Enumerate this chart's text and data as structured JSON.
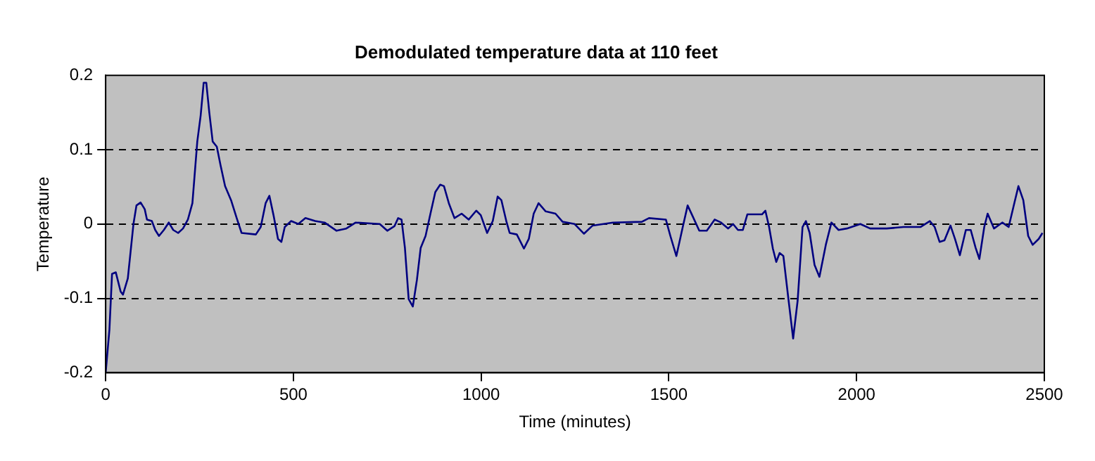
{
  "chart_data": {
    "type": "line",
    "title": "Demodulated temperature data at 110 feet",
    "xlabel": "Time (minutes)",
    "ylabel": "Temperature",
    "x": [
      0,
      10,
      17,
      27,
      40,
      46,
      59,
      74,
      82,
      93,
      104,
      110,
      123,
      132,
      142,
      155,
      168,
      180,
      193,
      206,
      219,
      231,
      244,
      253,
      261,
      268,
      276,
      285,
      296,
      306,
      318,
      334,
      349,
      362,
      400,
      413,
      426,
      436,
      447,
      459,
      468,
      477,
      494,
      513,
      532,
      558,
      583,
      615,
      641,
      666,
      730,
      750,
      769,
      779,
      788,
      797,
      807,
      818,
      829,
      839,
      852,
      865,
      878,
      891,
      901,
      914,
      929,
      948,
      967,
      987,
      999,
      1016,
      1031,
      1044,
      1054,
      1067,
      1076,
      1095,
      1114,
      1127,
      1140,
      1153,
      1172,
      1198,
      1217,
      1249,
      1274,
      1297,
      1351,
      1428,
      1447,
      1492,
      1504,
      1520,
      1537,
      1550,
      1562,
      1581,
      1601,
      1622,
      1639,
      1658,
      1671,
      1684,
      1697,
      1709,
      1729,
      1748,
      1757,
      1767,
      1777,
      1786,
      1795,
      1805,
      1818,
      1831,
      1843,
      1856,
      1865,
      1875,
      1888,
      1901,
      1918,
      1933,
      1952,
      1974,
      2010,
      2036,
      2080,
      2125,
      2170,
      2195,
      2208,
      2221,
      2234,
      2250,
      2262,
      2275,
      2291,
      2304,
      2317,
      2327,
      2340,
      2349,
      2366,
      2388,
      2405,
      2420,
      2431,
      2444,
      2457,
      2469,
      2485,
      2495
    ],
    "series": [
      {
        "color": "#000080",
        "values": [
          -0.2,
          -0.142,
          -0.067,
          -0.065,
          -0.091,
          -0.095,
          -0.073,
          0,
          0.025,
          0.029,
          0.02,
          0.006,
          0.004,
          -0.008,
          -0.016,
          -0.008,
          0.002,
          -0.008,
          -0.012,
          -0.006,
          0.006,
          0.028,
          0.111,
          0.146,
          0.19,
          0.19,
          0.15,
          0.111,
          0.104,
          0.079,
          0.051,
          0.032,
          0.008,
          -0.012,
          -0.014,
          -0.004,
          0.028,
          0.038,
          0.012,
          -0.02,
          -0.024,
          -0.004,
          0.004,
          0,
          0.008,
          0.004,
          0.002,
          -0.009,
          -0.006,
          0.002,
          0,
          -0.009,
          -0.003,
          0.008,
          0.006,
          -0.032,
          -0.101,
          -0.111,
          -0.075,
          -0.032,
          -0.016,
          0.014,
          0.043,
          0.053,
          0.051,
          0.028,
          0.008,
          0.014,
          0.006,
          0.018,
          0.012,
          -0.012,
          0.004,
          0.037,
          0.032,
          0.004,
          -0.012,
          -0.014,
          -0.033,
          -0.02,
          0.014,
          0.028,
          0.017,
          0.014,
          0.003,
          0,
          -0.013,
          -0.002,
          0.002,
          0.003,
          0.008,
          0.006,
          -0.016,
          -0.043,
          -0.004,
          0.025,
          0.012,
          -0.009,
          -0.009,
          0.006,
          0.002,
          -0.006,
          0,
          -0.008,
          -0.008,
          0.013,
          0.013,
          0.013,
          0.018,
          -0.004,
          -0.033,
          -0.051,
          -0.039,
          -0.043,
          -0.099,
          -0.154,
          -0.103,
          -0.004,
          0.004,
          -0.012,
          -0.055,
          -0.071,
          -0.028,
          0.002,
          -0.008,
          -0.006,
          0,
          -0.006,
          -0.006,
          -0.004,
          -0.004,
          0.004,
          -0.004,
          -0.024,
          -0.022,
          -0.002,
          -0.02,
          -0.042,
          -0.008,
          -0.008,
          -0.032,
          -0.047,
          -0.004,
          0.014,
          -0.006,
          0.002,
          -0.004,
          0.028,
          0.051,
          0.032,
          -0.016,
          -0.028,
          -0.02,
          -0.012
        ]
      }
    ],
    "xlim": [
      0,
      2500
    ],
    "xticks": [
      0,
      500,
      1000,
      1500,
      2000,
      2500
    ],
    "ylim": [
      -0.2,
      0.2
    ],
    "yticks": [
      -0.2,
      -0.1,
      0,
      0.1,
      0.2
    ],
    "grid": "y",
    "legend": false,
    "marker": "none",
    "line_style": "solid"
  }
}
